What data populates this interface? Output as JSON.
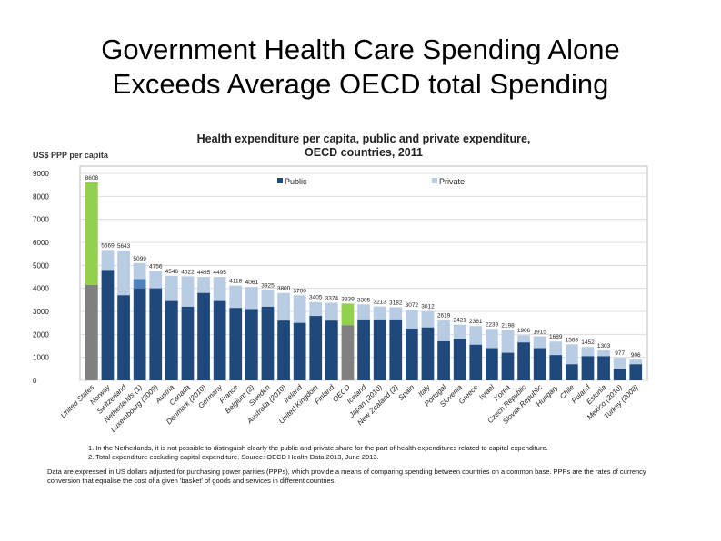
{
  "slide": {
    "title_line1": "Government Health Care Spending Alone",
    "title_line2": "Exceeds Average OECD total Spending"
  },
  "chart_data": {
    "type": "bar",
    "stacked": true,
    "title_line1": "Health expenditure per capita, public and private expenditure,",
    "title_line2": "OECD countries, 2011",
    "ylabel": "US$ PPP per capita",
    "ylim": [
      0,
      9000
    ],
    "yticks": [
      0,
      1000,
      2000,
      3000,
      4000,
      5000,
      6000,
      7000,
      8000,
      9000
    ],
    "grid": true,
    "legend_placement": "top",
    "legend": [
      "Public",
      "Private"
    ],
    "colors": {
      "public": "#1f497d",
      "private": "#b8cce4",
      "us_public": "#808080",
      "us_private": "#92d050",
      "netherlands_unallocated": "#4f81bd"
    },
    "categories": [
      "United States",
      "Norway",
      "Switzerland",
      "Netherlands (1)",
      "Luxembourg (2009)",
      "Austria",
      "Canada",
      "Denmark (2010)",
      "Germany",
      "France",
      "Belgium (2)",
      "Sweden",
      "Australia (2010)",
      "Ireland",
      "United Kingdom",
      "Finland",
      "OECD",
      "Iceland",
      "Japan (2010)",
      "New Zealand (2)",
      "Spain",
      "Italy",
      "Portugal",
      "Slovenia",
      "Greece",
      "Israel",
      "Korea",
      "Czech Republic",
      "Slovak Republic",
      "Hungary",
      "Chile",
      "Poland",
      "Estonia",
      "Mexico (2010)",
      "Turkey (2008)"
    ],
    "totals": [
      8608,
      5669,
      5643,
      5099,
      4756,
      4546,
      4522,
      4495,
      4495,
      4118,
      4061,
      3925,
      3800,
      3700,
      3405,
      3374,
      3339,
      3305,
      3213,
      3182,
      3072,
      3012,
      2619,
      2421,
      2361,
      2239,
      2198,
      1966,
      1915,
      1689,
      1568,
      1452,
      1303,
      977,
      906
    ],
    "public": [
      4150,
      4800,
      3700,
      4000,
      4000,
      3450,
      3200,
      3800,
      3450,
      3150,
      3100,
      3200,
      2600,
      2500,
      2800,
      2600,
      2400,
      2650,
      2650,
      2650,
      2250,
      2300,
      1700,
      1800,
      1550,
      1400,
      1200,
      1650,
      1400,
      1100,
      700,
      1050,
      1050,
      500,
      700
    ],
    "netherlands_unallocated_top": 4400
  },
  "notes": {
    "n1": "1. In the Netherlands, it is not possible to distinguish clearly the public and private share for the part of health expenditures related to capital expenditure.",
    "n2": "2. Total expenditure excluding capital expenditure.     Source: OECD Health Data 2013, June 2013.",
    "caption": "Data are expressed in US dollars adjusted for purchasing power parities (PPPs), which provide a means of comparing spending between countries on a common base. PPPs are the rates of currency conversion that equalise the cost of a given 'basket' of goods and services in different countries."
  }
}
